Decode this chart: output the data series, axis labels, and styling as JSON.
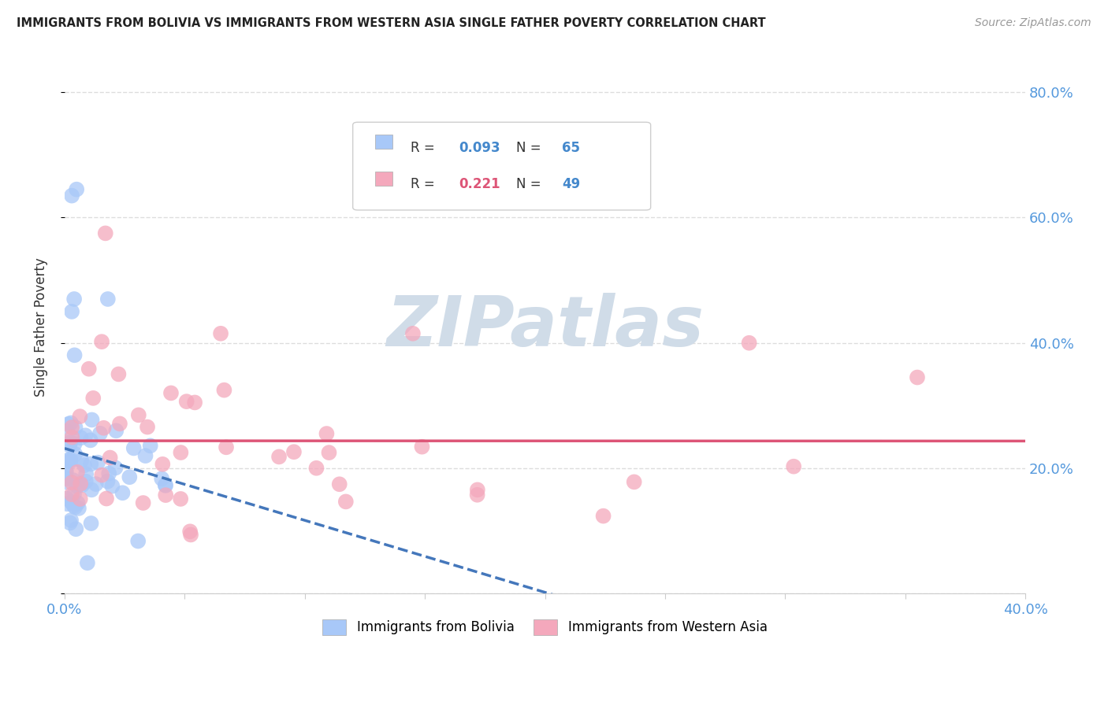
{
  "title": "IMMIGRANTS FROM BOLIVIA VS IMMIGRANTS FROM WESTERN ASIA SINGLE FATHER POVERTY CORRELATION CHART",
  "source": "Source: ZipAtlas.com",
  "ylabel": "Single Father Poverty",
  "xlim": [
    0.0,
    0.4
  ],
  "ylim": [
    0.0,
    0.85
  ],
  "bolivia_R": 0.093,
  "bolivia_N": 65,
  "western_asia_R": 0.221,
  "western_asia_N": 49,
  "bolivia_color": "#a8c8f8",
  "western_asia_color": "#f4a8bc",
  "bolivia_line_color": "#4477bb",
  "western_asia_line_color": "#dd5577",
  "watermark_color": "#d0dce8",
  "grid_color": "#dddddd",
  "axis_label_color": "#5599dd",
  "bolivia_seed": 42,
  "western_seed": 99
}
